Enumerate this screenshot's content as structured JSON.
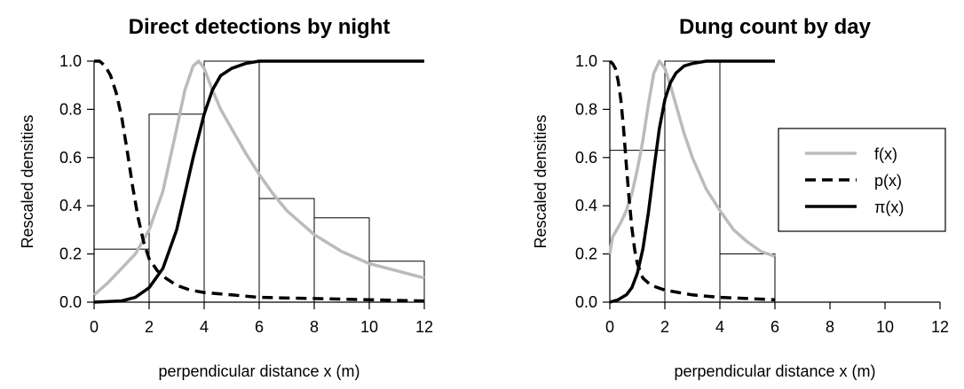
{
  "chart_data": [
    {
      "type": "line",
      "title": "Direct detections by night",
      "xlabel": "perpendicular distance x (m)",
      "ylabel": "Rescaled densities",
      "xlim": [
        0,
        12
      ],
      "ylim": [
        0,
        1
      ],
      "xticks": [
        "0",
        "2",
        "4",
        "6",
        "8",
        "10",
        "12"
      ],
      "yticks": [
        "0.0",
        "0.2",
        "0.4",
        "0.6",
        "0.8",
        "1.0"
      ],
      "legend": "none",
      "histogram": {
        "bin_edges": [
          0,
          2,
          4,
          6,
          8,
          10,
          12
        ],
        "values": [
          0.22,
          0.78,
          1.0,
          0.43,
          0.35,
          0.17
        ]
      },
      "series": [
        {
          "name": "f(x)",
          "style": "solid",
          "color": "#bbbbbb",
          "x": [
            0,
            0.5,
            1,
            1.5,
            2,
            2.5,
            3,
            3.3,
            3.6,
            3.8,
            4,
            4.3,
            4.6,
            5,
            5.5,
            6,
            6.5,
            7,
            8,
            9,
            10,
            11,
            12
          ],
          "y": [
            0.03,
            0.08,
            0.14,
            0.2,
            0.3,
            0.46,
            0.72,
            0.88,
            0.98,
            1.0,
            0.97,
            0.88,
            0.8,
            0.72,
            0.62,
            0.53,
            0.45,
            0.38,
            0.28,
            0.21,
            0.16,
            0.13,
            0.1
          ]
        },
        {
          "name": "p(x)",
          "style": "dashed",
          "color": "#000000",
          "x": [
            0,
            0.2,
            0.4,
            0.6,
            0.8,
            1,
            1.2,
            1.4,
            1.6,
            1.8,
            2,
            2.3,
            2.6,
            3,
            3.5,
            4,
            5,
            6,
            8,
            10,
            12
          ],
          "y": [
            1.0,
            1.0,
            0.98,
            0.94,
            0.87,
            0.77,
            0.63,
            0.48,
            0.35,
            0.25,
            0.18,
            0.13,
            0.1,
            0.07,
            0.05,
            0.04,
            0.03,
            0.02,
            0.015,
            0.01,
            0.005
          ]
        },
        {
          "name": "π(x)",
          "style": "solid",
          "color": "#000000",
          "x": [
            0,
            1,
            1.5,
            2,
            2.5,
            3,
            3.3,
            3.6,
            4,
            4.3,
            4.6,
            5,
            5.5,
            6,
            7,
            8,
            9,
            10,
            11,
            12
          ],
          "y": [
            0.0,
            0.005,
            0.02,
            0.06,
            0.14,
            0.3,
            0.45,
            0.6,
            0.78,
            0.88,
            0.94,
            0.97,
            0.99,
            1.0,
            1.0,
            1.0,
            1.0,
            1.0,
            1.0,
            1.0
          ]
        }
      ]
    },
    {
      "type": "line",
      "title": "Dung count by day",
      "xlabel": "perpendicular distance x (m)",
      "ylabel": "Rescaled densities",
      "xlim": [
        0,
        12
      ],
      "ylim": [
        0,
        1
      ],
      "xticks": [
        "0",
        "2",
        "4",
        "6",
        "8",
        "10",
        "12"
      ],
      "yticks": [
        "0.0",
        "0.2",
        "0.4",
        "0.6",
        "0.8",
        "1.0"
      ],
      "legend": "right",
      "legend_entries": [
        {
          "label": "f(x)",
          "style": "solid",
          "color": "#bbbbbb"
        },
        {
          "label": "p(x)",
          "style": "dashed",
          "color": "#000000"
        },
        {
          "label": "π(x)",
          "style": "solid",
          "color": "#000000"
        }
      ],
      "histogram": {
        "bin_edges": [
          0,
          2,
          4,
          6
        ],
        "values": [
          0.63,
          1.0,
          0.2
        ]
      },
      "series": [
        {
          "name": "f(x)",
          "style": "solid",
          "color": "#bbbbbb",
          "x": [
            0,
            0.1,
            0.2,
            0.4,
            0.6,
            0.8,
            1,
            1.2,
            1.4,
            1.6,
            1.8,
            2,
            2.2,
            2.4,
            2.7,
            3,
            3.5,
            4,
            4.5,
            5,
            5.5,
            6
          ],
          "y": [
            0.2,
            0.27,
            0.29,
            0.33,
            0.38,
            0.45,
            0.55,
            0.67,
            0.82,
            0.95,
            1.0,
            0.97,
            0.9,
            0.82,
            0.7,
            0.6,
            0.47,
            0.38,
            0.3,
            0.25,
            0.21,
            0.19
          ]
        },
        {
          "name": "p(x)",
          "style": "dashed",
          "color": "#000000",
          "x": [
            0,
            0.1,
            0.2,
            0.3,
            0.4,
            0.5,
            0.6,
            0.7,
            0.8,
            0.9,
            1,
            1.2,
            1.5,
            2,
            2.5,
            3,
            4,
            5,
            6
          ],
          "y": [
            1.0,
            0.99,
            0.97,
            0.92,
            0.84,
            0.72,
            0.57,
            0.43,
            0.31,
            0.22,
            0.16,
            0.1,
            0.07,
            0.05,
            0.04,
            0.03,
            0.02,
            0.015,
            0.01
          ]
        },
        {
          "name": "π(x)",
          "style": "solid",
          "color": "#000000",
          "x": [
            0,
            0.3,
            0.6,
            0.8,
            1,
            1.2,
            1.4,
            1.6,
            1.8,
            2,
            2.2,
            2.4,
            2.7,
            3,
            3.5,
            4,
            5,
            6
          ],
          "y": [
            0.0,
            0.01,
            0.03,
            0.06,
            0.12,
            0.22,
            0.37,
            0.55,
            0.72,
            0.84,
            0.91,
            0.95,
            0.98,
            0.99,
            1.0,
            1.0,
            1.0,
            1.0
          ]
        }
      ]
    }
  ]
}
